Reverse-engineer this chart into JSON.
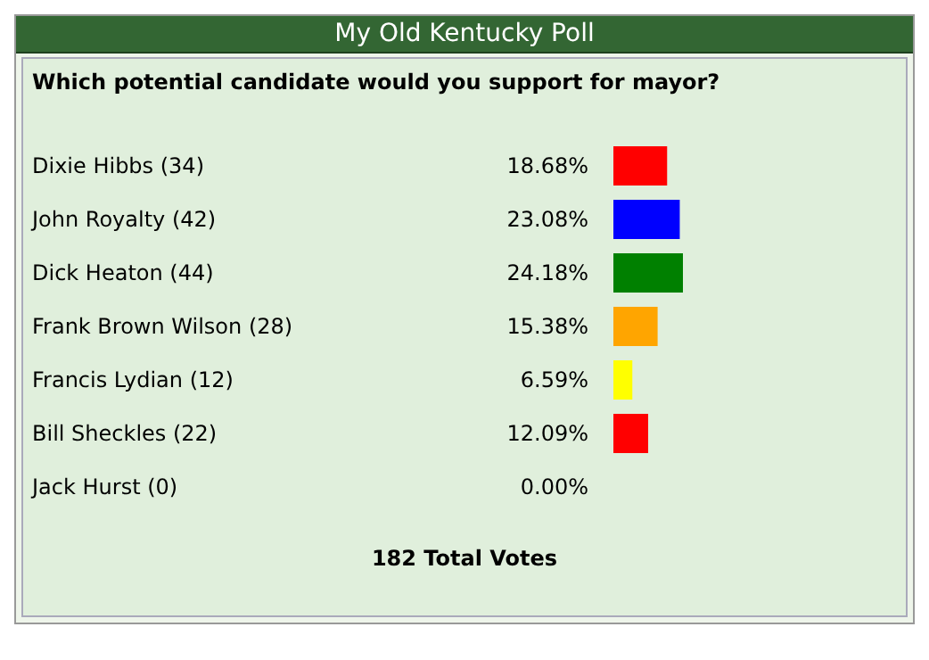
{
  "chart_data": {
    "type": "bar",
    "orientation": "horizontal",
    "title": "My Old Kentucky Poll",
    "subtitle": "Which potential candidate would you support for mayor?",
    "categories": [
      "Dixie Hibbs (34)",
      "John Royalty (42)",
      "Dick Heaton (44)",
      "Frank Brown Wilson (28)",
      "Francis Lydian (12)",
      "Bill Sheckles (22)",
      "Jack Hurst (0)"
    ],
    "values": [
      18.68,
      23.08,
      24.18,
      15.38,
      6.59,
      12.09,
      0
    ],
    "value_labels": [
      "18.68%",
      "23.08%",
      "24.18%",
      "15.38%",
      "6.59%",
      "12.09%",
      "0.00%"
    ],
    "colors": [
      "#ff0000",
      "#0000ff",
      "#008000",
      "#ffa500",
      "#ffff00",
      "#ff0000",
      "#ff0000"
    ],
    "tick_labels": "y",
    "annotations": [
      "182 Total Votes"
    ]
  }
}
